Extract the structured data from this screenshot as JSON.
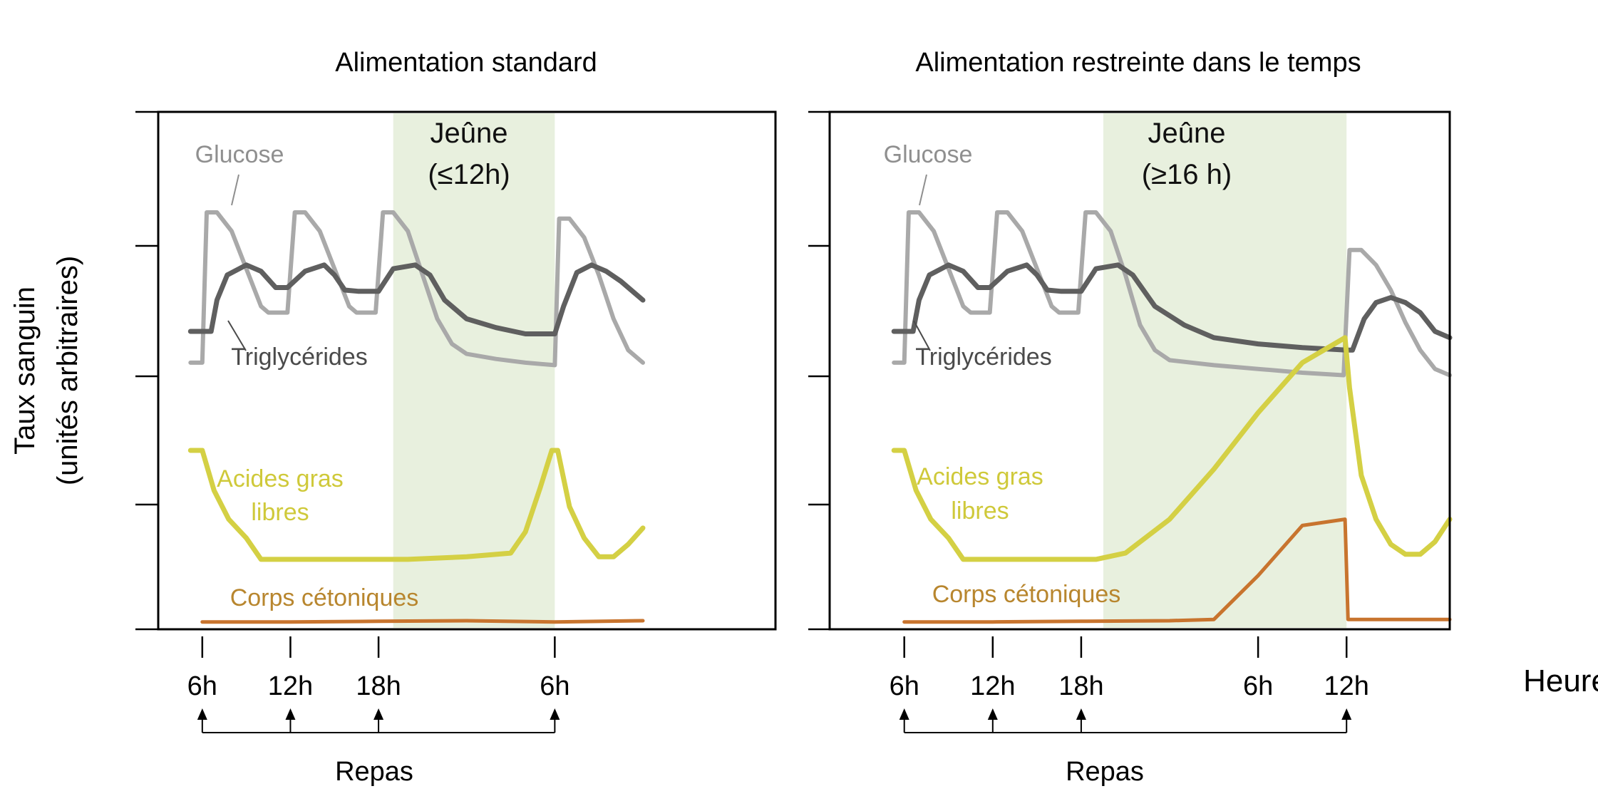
{
  "ylabel_line1": "Taux sanguin",
  "ylabel_line2": "(unités arbitraires)",
  "xlabel": "Heures",
  "meals_label": "Repas",
  "colors": {
    "glucose": "#a9a9a9",
    "triglycerides": "#5f5f5f",
    "acides_gras": "#d4d044",
    "corps_cetoniques": "#c8742e",
    "fasting_band": "#e8f0de",
    "axis": "#000000"
  },
  "chart_data": [
    {
      "type": "line",
      "title": "Alimentation standard",
      "fasting_label_line1": "Jeûne",
      "fasting_label_line2": "(≤12h)",
      "fasting_window_hours": [
        19,
        30
      ],
      "x_range_hours": [
        3,
        36
      ],
      "x_ticks": [
        {
          "hour": 6,
          "label": "6h"
        },
        {
          "hour": 12,
          "label": "12h"
        },
        {
          "hour": 18,
          "label": "18h"
        },
        {
          "hour": 30,
          "label": "6h"
        }
      ],
      "meals_hours": [
        6,
        12,
        18,
        30
      ],
      "y_range": [
        0,
        4
      ],
      "series_labels": {
        "glucose": "Glucose",
        "triglycerides": "Triglycérides",
        "acides_gras_line1": "Acides gras",
        "acides_gras_line2": "libres",
        "corps_cetoniques": "Corps cétoniques"
      },
      "series": [
        {
          "key": "glucose",
          "x": [
            5.2,
            6,
            6.3,
            7,
            8,
            9,
            10,
            10.5,
            11.8,
            12.3,
            13,
            14,
            15,
            16,
            16.5,
            17.8,
            18.3,
            19,
            20,
            21,
            22,
            23,
            24,
            26,
            28,
            30,
            30.3,
            31,
            32,
            33,
            34,
            35,
            36
          ],
          "y": [
            2.1,
            2.1,
            3.3,
            3.3,
            3.15,
            2.85,
            2.55,
            2.5,
            2.5,
            3.3,
            3.3,
            3.15,
            2.85,
            2.55,
            2.5,
            2.5,
            3.3,
            3.3,
            3.15,
            2.8,
            2.45,
            2.25,
            2.17,
            2.13,
            2.1,
            2.08,
            3.25,
            3.25,
            3.1,
            2.8,
            2.45,
            2.2,
            2.1
          ]
        },
        {
          "key": "triglycerides",
          "x": [
            5.2,
            6.6,
            7,
            7.7,
            9,
            10,
            11,
            11.8,
            13,
            14.3,
            15,
            15.7,
            16.6,
            18,
            19,
            20.5,
            21.5,
            22.5,
            24,
            26,
            28,
            30,
            30.6,
            31.5,
            32.5,
            33.5,
            34.5,
            36
          ],
          "y": [
            2.35,
            2.35,
            2.6,
            2.8,
            2.88,
            2.83,
            2.7,
            2.7,
            2.83,
            2.88,
            2.8,
            2.68,
            2.67,
            2.67,
            2.85,
            2.88,
            2.8,
            2.6,
            2.45,
            2.38,
            2.33,
            2.33,
            2.55,
            2.82,
            2.88,
            2.83,
            2.75,
            2.6
          ]
        },
        {
          "key": "acides_gras",
          "x": [
            5.2,
            6,
            6.8,
            7.8,
            9,
            10,
            12,
            16,
            20,
            24,
            27,
            28,
            29,
            29.8,
            30.2,
            31,
            32,
            33,
            34,
            35,
            36
          ],
          "y": [
            1.4,
            1.4,
            1.08,
            0.85,
            0.7,
            0.53,
            0.53,
            0.53,
            0.53,
            0.55,
            0.58,
            0.75,
            1.1,
            1.4,
            1.4,
            0.95,
            0.7,
            0.55,
            0.55,
            0.65,
            0.78
          ]
        },
        {
          "key": "corps_cetoniques",
          "x": [
            6,
            12,
            18,
            24,
            30,
            36
          ],
          "y": [
            0.03,
            0.03,
            0.035,
            0.04,
            0.03,
            0.04
          ]
        }
      ]
    },
    {
      "type": "line",
      "title": "Alimentation restreinte dans le temps",
      "fasting_label_line1": "Jeûne",
      "fasting_label_line2": "(≥16 h)",
      "fasting_window_hours": [
        19.5,
        36
      ],
      "x_range_hours": [
        3.5,
        43
      ],
      "x_ticks": [
        {
          "hour": 6,
          "label": "6h"
        },
        {
          "hour": 12,
          "label": "12h"
        },
        {
          "hour": 18,
          "label": "18h"
        },
        {
          "hour": 30,
          "label": "6h"
        },
        {
          "hour": 36,
          "label": "12h"
        }
      ],
      "meals_hours": [
        6,
        12,
        18,
        36
      ],
      "y_range": [
        0,
        4
      ],
      "series_labels": {
        "glucose": "Glucose",
        "triglycerides": "Triglycérides",
        "acides_gras_line1": "Acides gras",
        "acides_gras_line2": "libres",
        "corps_cetoniques": "Corps cétoniques"
      },
      "series": [
        {
          "key": "glucose",
          "x": [
            5.3,
            6,
            6.3,
            7,
            8,
            9,
            10,
            10.5,
            11.8,
            12.3,
            13,
            14,
            15,
            16,
            16.5,
            17.8,
            18.3,
            19,
            20,
            21,
            22,
            23,
            24,
            27,
            30,
            33,
            35.8,
            36.2,
            37,
            38,
            39,
            40,
            41,
            42,
            43
          ],
          "y": [
            2.1,
            2.1,
            3.3,
            3.3,
            3.15,
            2.85,
            2.55,
            2.5,
            2.5,
            3.3,
            3.3,
            3.15,
            2.85,
            2.55,
            2.5,
            2.5,
            3.3,
            3.3,
            3.15,
            2.8,
            2.4,
            2.2,
            2.12,
            2.08,
            2.05,
            2.02,
            2.0,
            3.0,
            3.0,
            2.88,
            2.68,
            2.42,
            2.2,
            2.05,
            2.0
          ]
        },
        {
          "key": "triglycerides",
          "x": [
            5.3,
            6.6,
            7,
            7.7,
            9,
            10,
            11,
            11.8,
            13,
            14.3,
            15,
            15.7,
            16.6,
            18,
            19,
            20.5,
            21.5,
            23,
            25,
            27,
            30,
            33,
            36,
            36.4,
            37.2,
            38,
            39,
            40,
            41,
            42,
            43
          ],
          "y": [
            2.35,
            2.35,
            2.6,
            2.8,
            2.88,
            2.83,
            2.7,
            2.7,
            2.83,
            2.88,
            2.8,
            2.68,
            2.67,
            2.67,
            2.85,
            2.88,
            2.8,
            2.55,
            2.4,
            2.3,
            2.25,
            2.22,
            2.2,
            2.2,
            2.45,
            2.58,
            2.62,
            2.58,
            2.5,
            2.35,
            2.3
          ]
        },
        {
          "key": "acides_gras",
          "x": [
            5.3,
            6,
            6.8,
            7.8,
            9,
            10,
            12,
            16,
            19,
            21,
            24,
            27,
            30,
            33,
            35.9,
            36.2,
            37,
            38,
            39,
            40,
            41,
            42,
            43
          ],
          "y": [
            1.4,
            1.4,
            1.08,
            0.85,
            0.7,
            0.53,
            0.53,
            0.53,
            0.53,
            0.58,
            0.85,
            1.25,
            1.7,
            2.1,
            2.3,
            1.9,
            1.2,
            0.85,
            0.65,
            0.57,
            0.57,
            0.67,
            0.85
          ]
        },
        {
          "key": "corps_cetoniques",
          "x": [
            6,
            12,
            18,
            24,
            27,
            30,
            33,
            35.9,
            36.1,
            38,
            40,
            43
          ],
          "y": [
            0.03,
            0.03,
            0.035,
            0.04,
            0.05,
            0.4,
            0.8,
            0.85,
            0.05,
            0.05,
            0.05,
            0.05
          ]
        }
      ]
    }
  ]
}
